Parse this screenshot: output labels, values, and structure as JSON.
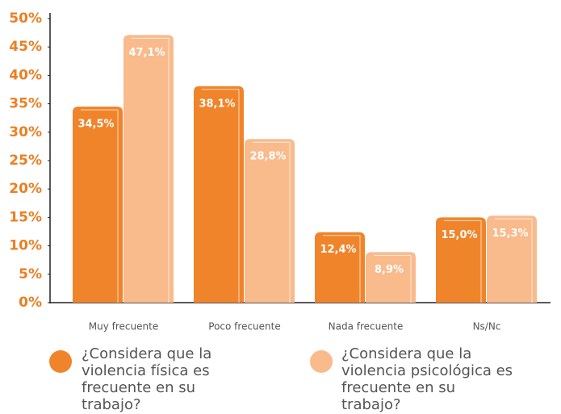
{
  "chart_data": {
    "type": "bar",
    "categories": [
      "Muy frecuente",
      "Poco frecuente",
      "Nada frecuente",
      "Ns/Nc"
    ],
    "series": [
      {
        "name": "¿Considera que la violencia física es frecuente en su trabajo?",
        "color": "#f0842a",
        "values": [
          34.5,
          38.1,
          12.4,
          15.0
        ],
        "value_labels": [
          "34,5%",
          "38,1%",
          "12,4%",
          "15,0%"
        ]
      },
      {
        "name": "¿Considera que la violencia psicológica es frecuente en su trabajo?",
        "color": "#f9ba8c",
        "values": [
          47.1,
          28.8,
          8.9,
          15.3
        ],
        "value_labels": [
          "47,1%",
          "28,8%",
          "8,9%",
          "15,3%"
        ]
      }
    ],
    "ylim": [
      0,
      50
    ],
    "yticks": [
      {
        "value": 0,
        "label": "0%"
      },
      {
        "value": 5,
        "label": "5%"
      },
      {
        "value": 10,
        "label": "10%"
      },
      {
        "value": 15,
        "label": "15%"
      },
      {
        "value": 20,
        "label": "20%"
      },
      {
        "value": 25,
        "label": "25%"
      },
      {
        "value": 30,
        "label": "30%"
      },
      {
        "value": 35,
        "label": "35%"
      },
      {
        "value": 40,
        "label": "40%"
      },
      {
        "value": 45,
        "label": "45%"
      },
      {
        "value": 50,
        "label": "50%"
      }
    ],
    "grid": false
  }
}
